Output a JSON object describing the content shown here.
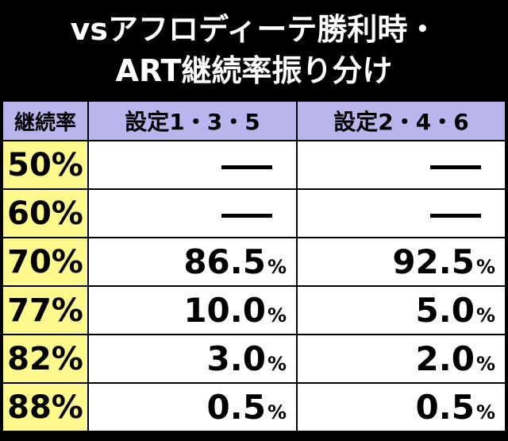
{
  "title": {
    "line1": "vsアフロディーテ勝利時・",
    "line2": "ART継続率振り分け"
  },
  "table": {
    "headers": [
      "継続率",
      "設定1・3・5",
      "設定2・4・6"
    ],
    "rows": [
      {
        "rate": "50%",
        "col1": "",
        "col1_pct": "",
        "col2": "",
        "col2_pct": "",
        "dash": true
      },
      {
        "rate": "60%",
        "col1": "",
        "col1_pct": "",
        "col2": "",
        "col2_pct": "",
        "dash": true
      },
      {
        "rate": "70%",
        "col1": "86.5",
        "col1_pct": "%",
        "col2": "92.5",
        "col2_pct": "%",
        "dash": false
      },
      {
        "rate": "77%",
        "col1": "10.0",
        "col1_pct": "%",
        "col2": "5.0",
        "col2_pct": "%",
        "dash": false
      },
      {
        "rate": "82%",
        "col1": "3.0",
        "col1_pct": "%",
        "col2": "2.0",
        "col2_pct": "%",
        "dash": false
      },
      {
        "rate": "88%",
        "col1": "0.5",
        "col1_pct": "%",
        "col2": "0.5",
        "col2_pct": "%",
        "dash": false
      }
    ]
  },
  "colors": {
    "background": "#000000",
    "header_bg": "#b9b6ee",
    "rate_bg": "#fff98e",
    "cell_bg": "#ffffff"
  }
}
